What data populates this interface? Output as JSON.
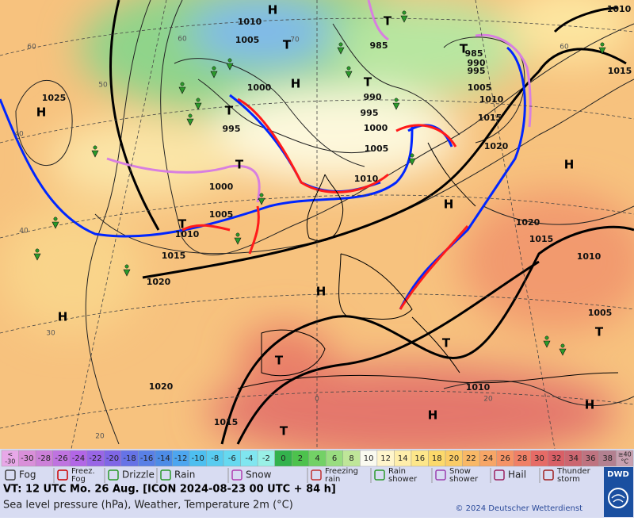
{
  "map": {
    "pressure_labels": [
      "1010",
      "1005",
      "985",
      "1000",
      "990",
      "995",
      "995",
      "1000",
      "1005",
      "1010",
      "1000",
      "1005",
      "1010",
      "1015",
      "1020",
      "1025",
      "985",
      "990",
      "995",
      "1005",
      "1010",
      "1015",
      "1020",
      "1020",
      "1015",
      "1010",
      "1005",
      "1010",
      "1020",
      "1015",
      "1010",
      "1015"
    ],
    "centers": [
      "H",
      "T",
      "T",
      "H",
      "T",
      "T",
      "H",
      "T",
      "T",
      "H",
      "H",
      "T",
      "H",
      "H",
      "T",
      "T",
      "T",
      "H",
      "H",
      "T"
    ],
    "grid_labels": [
      "60",
      "50",
      "40",
      "40",
      "30",
      "20",
      "60",
      "70",
      "60",
      "0",
      "20"
    ]
  },
  "scale": {
    "cells": [
      {
        "lines": [
          "<",
          "-30"
        ],
        "color": "#e8a8e8"
      },
      {
        "lines": [
          "-30"
        ],
        "color": "#d98fd9"
      },
      {
        "lines": [
          "-28"
        ],
        "color": "#cc80d9"
      },
      {
        "lines": [
          "-26"
        ],
        "color": "#bf73e0"
      },
      {
        "lines": [
          "-24"
        ],
        "color": "#b266e6"
      },
      {
        "lines": [
          "-22"
        ],
        "color": "#9966e6"
      },
      {
        "lines": [
          "-20"
        ],
        "color": "#7f66e6"
      },
      {
        "lines": [
          "-18"
        ],
        "color": "#6673e6"
      },
      {
        "lines": [
          "-16"
        ],
        "color": "#5980e6"
      },
      {
        "lines": [
          "-14"
        ],
        "color": "#4d8ce6"
      },
      {
        "lines": [
          "-12"
        ],
        "color": "#4da6f0"
      },
      {
        "lines": [
          "-10"
        ],
        "color": "#4dbff0"
      },
      {
        "lines": [
          "-8"
        ],
        "color": "#59ccf0"
      },
      {
        "lines": [
          "-6"
        ],
        "color": "#66d9f0"
      },
      {
        "lines": [
          "-4"
        ],
        "color": "#80e6f0"
      },
      {
        "lines": [
          "-2"
        ],
        "color": "#99f0e6"
      },
      {
        "lines": [
          "0"
        ],
        "color": "#33b24d"
      },
      {
        "lines": [
          "2"
        ],
        "color": "#4dc24d"
      },
      {
        "lines": [
          "4"
        ],
        "color": "#73d166"
      },
      {
        "lines": [
          "6"
        ],
        "color": "#99dd80"
      },
      {
        "lines": [
          "8"
        ],
        "color": "#bfe699"
      },
      {
        "lines": [
          "10"
        ],
        "color": "#fafaf0"
      },
      {
        "lines": [
          "12"
        ],
        "color": "#fff5cc"
      },
      {
        "lines": [
          "14"
        ],
        "color": "#ffeeaa"
      },
      {
        "lines": [
          "16"
        ],
        "color": "#fde68a"
      },
      {
        "lines": [
          "18"
        ],
        "color": "#fcd96b"
      },
      {
        "lines": [
          "20"
        ],
        "color": "#fbcc66"
      },
      {
        "lines": [
          "22"
        ],
        "color": "#f9b866"
      },
      {
        "lines": [
          "24"
        ],
        "color": "#f7a666"
      },
      {
        "lines": [
          "26"
        ],
        "color": "#f59366"
      },
      {
        "lines": [
          "28"
        ],
        "color": "#f08066"
      },
      {
        "lines": [
          "30"
        ],
        "color": "#e66b66"
      },
      {
        "lines": [
          "32"
        ],
        "color": "#d95f66"
      },
      {
        "lines": [
          "34"
        ],
        "color": "#cc6670"
      },
      {
        "lines": [
          "36"
        ],
        "color": "#bf7380"
      },
      {
        "lines": [
          "38"
        ],
        "color": "#b38090"
      },
      {
        "lines": [
          "≥40",
          "°C"
        ],
        "color": "#c8a0b0"
      }
    ]
  },
  "legend": [
    {
      "lines": [
        "Fog"
      ]
    },
    {
      "lines": [
        "Freez.",
        "Fog"
      ]
    },
    {
      "lines": [
        "Drizzle"
      ]
    },
    {
      "lines": [
        "Rain"
      ]
    },
    {
      "lines": [
        "Snow"
      ]
    },
    {
      "lines": [
        "Freezing",
        "rain"
      ]
    },
    {
      "lines": [
        "Rain",
        "shower"
      ]
    },
    {
      "lines": [
        "Snow",
        "shower"
      ]
    },
    {
      "lines": [
        "Hail"
      ]
    },
    {
      "lines": [
        "Thunder",
        "storm"
      ]
    }
  ],
  "footer": {
    "valid_time": "VT: 12 UTC Mo.  26 Aug. [ICON 2024-08-23  00 UTC + 84 h]",
    "description": "Sea level pressure (hPa), Weather, Temperature 2m (°C)",
    "copyright": "© 2024 Deutscher Wetterdienst",
    "logo": "DWD"
  }
}
